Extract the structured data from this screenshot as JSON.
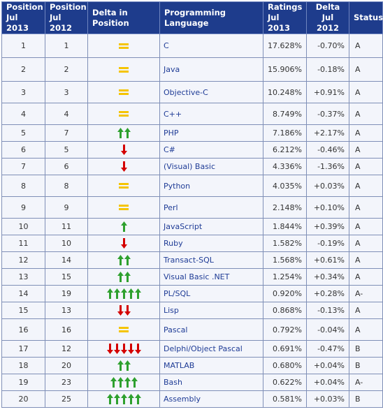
{
  "headers": {
    "pos2013": [
      "Position",
      "Jul 2013"
    ],
    "pos2012": [
      "Position",
      "Jul 2012"
    ],
    "delta": "Delta in Position",
    "language": "Programming Language",
    "ratings": [
      "Ratings",
      "Jul 2013"
    ],
    "delta2012": [
      "Delta",
      "Jul 2012"
    ],
    "status": "Status"
  },
  "colors": {
    "header_bg": "#1e3c8c",
    "up": "#2ea02e",
    "down": "#d40000",
    "equal": "#f5c400",
    "link": "#1f3c96"
  },
  "rows": [
    {
      "p13": "1",
      "p12": "1",
      "d": "eq",
      "n": 0,
      "lang": "C",
      "rating": "17.628%",
      "delta": "-0.70%",
      "status": "A",
      "h": 34
    },
    {
      "p13": "2",
      "p12": "2",
      "d": "eq",
      "n": 0,
      "lang": "Java",
      "rating": "15.906%",
      "delta": "-0.18%",
      "status": "A",
      "h": 34
    },
    {
      "p13": "3",
      "p12": "3",
      "d": "eq",
      "n": 0,
      "lang": "Objective-C",
      "rating": "10.248%",
      "delta": "+0.91%",
      "status": "A",
      "h": 31
    },
    {
      "p13": "4",
      "p12": "4",
      "d": "eq",
      "n": 0,
      "lang": "C++",
      "rating": "8.749%",
      "delta": "-0.37%",
      "status": "A",
      "h": 31
    },
    {
      "p13": "5",
      "p12": "7",
      "d": "up",
      "n": 2,
      "lang": "PHP",
      "rating": "7.186%",
      "delta": "+2.17%",
      "status": "A",
      "h": 24
    },
    {
      "p13": "6",
      "p12": "5",
      "d": "down",
      "n": 1,
      "lang": "C#",
      "rating": "6.212%",
      "delta": "-0.46%",
      "status": "A",
      "h": 24
    },
    {
      "p13": "7",
      "p12": "6",
      "d": "down",
      "n": 1,
      "lang": "(Visual) Basic",
      "rating": "4.336%",
      "delta": "-1.36%",
      "status": "A",
      "h": 24
    },
    {
      "p13": "8",
      "p12": "8",
      "d": "eq",
      "n": 0,
      "lang": "Python",
      "rating": "4.035%",
      "delta": "+0.03%",
      "status": "A",
      "h": 31
    },
    {
      "p13": "9",
      "p12": "9",
      "d": "eq",
      "n": 0,
      "lang": "Perl",
      "rating": "2.148%",
      "delta": "+0.10%",
      "status": "A",
      "h": 31
    },
    {
      "p13": "10",
      "p12": "11",
      "d": "up",
      "n": 1,
      "lang": "JavaScript",
      "rating": "1.844%",
      "delta": "+0.39%",
      "status": "A",
      "h": 24
    },
    {
      "p13": "11",
      "p12": "10",
      "d": "down",
      "n": 1,
      "lang": "Ruby",
      "rating": "1.582%",
      "delta": "-0.19%",
      "status": "A",
      "h": 24
    },
    {
      "p13": "12",
      "p12": "14",
      "d": "up",
      "n": 2,
      "lang": "Transact-SQL",
      "rating": "1.568%",
      "delta": "+0.61%",
      "status": "A",
      "h": 24
    },
    {
      "p13": "13",
      "p12": "15",
      "d": "up",
      "n": 2,
      "lang": "Visual Basic .NET",
      "rating": "1.254%",
      "delta": "+0.34%",
      "status": "A",
      "h": 24
    },
    {
      "p13": "14",
      "p12": "19",
      "d": "up",
      "n": 5,
      "lang": "PL/SQL",
      "rating": "0.920%",
      "delta": "+0.28%",
      "status": "A-",
      "h": 24
    },
    {
      "p13": "15",
      "p12": "13",
      "d": "down",
      "n": 2,
      "lang": "Lisp",
      "rating": "0.868%",
      "delta": "-0.13%",
      "status": "A",
      "h": 24
    },
    {
      "p13": "16",
      "p12": "16",
      "d": "eq",
      "n": 0,
      "lang": "Pascal",
      "rating": "0.792%",
      "delta": "-0.04%",
      "status": "A",
      "h": 31
    },
    {
      "p13": "17",
      "p12": "12",
      "d": "down",
      "n": 5,
      "lang": "Delphi/Object Pascal",
      "rating": "0.691%",
      "delta": "-0.47%",
      "status": "B",
      "h": 24
    },
    {
      "p13": "18",
      "p12": "20",
      "d": "up",
      "n": 2,
      "lang": "MATLAB",
      "rating": "0.680%",
      "delta": "+0.04%",
      "status": "B",
      "h": 24
    },
    {
      "p13": "19",
      "p12": "23",
      "d": "up",
      "n": 4,
      "lang": "Bash",
      "rating": "0.622%",
      "delta": "+0.04%",
      "status": "A-",
      "h": 24
    },
    {
      "p13": "20",
      "p12": "25",
      "d": "up",
      "n": 5,
      "lang": "Assembly",
      "rating": "0.581%",
      "delta": "+0.03%",
      "status": "B",
      "h": 24
    }
  ]
}
